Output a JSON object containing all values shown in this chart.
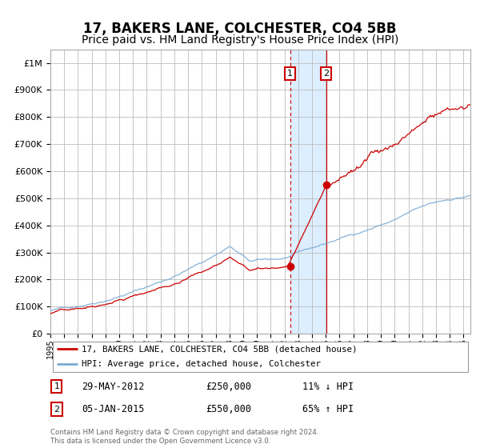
{
  "title": "17, BAKERS LANE, COLCHESTER, CO4 5BB",
  "subtitle": "Price paid vs. HM Land Registry's House Price Index (HPI)",
  "title_fontsize": 12,
  "subtitle_fontsize": 10,
  "x_start_year": 1995,
  "x_end_year": 2025,
  "y_ticks": [
    0,
    100000,
    200000,
    300000,
    400000,
    500000,
    600000,
    700000,
    800000,
    900000,
    1000000
  ],
  "y_tick_labels": [
    "£0",
    "£100K",
    "£200K",
    "£300K",
    "£400K",
    "£500K",
    "£600K",
    "£700K",
    "£800K",
    "£900K",
    "£1M"
  ],
  "hpi_color": "#7aaad4",
  "price_color": "#cc0000",
  "marker_color": "#cc0000",
  "grid_color": "#bbbbbb",
  "bg_color": "#ffffff",
  "plot_bg_color": "#ffffff",
  "transaction1_label": "29-MAY-2012",
  "transaction1_price": 250000,
  "transaction1_hpi_pct": "11% ↓ HPI",
  "transaction1_year": 2012.41,
  "transaction2_label": "05-JAN-2015",
  "transaction2_price": 550000,
  "transaction2_hpi_pct": "65% ↑ HPI",
  "transaction2_year": 2015.02,
  "legend_line1": "17, BAKERS LANE, COLCHESTER, CO4 5BB (detached house)",
  "legend_line2": "HPI: Average price, detached house, Colchester",
  "footnote": "Contains HM Land Registry data © Crown copyright and database right 2024.\nThis data is licensed under the Open Government Licence v3.0.",
  "shade_color": "#ddeeff",
  "vline_color": "#cc0000",
  "box_color": "#cc0000"
}
